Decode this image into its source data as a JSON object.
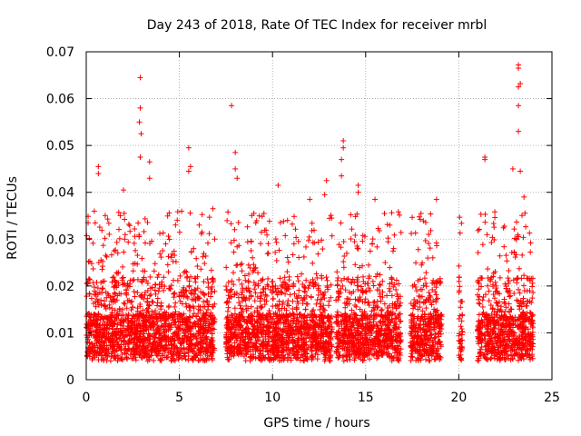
{
  "chart_data": {
    "type": "scatter",
    "title": "Day 243 of 2018, Rate Of TEC Index for receiver mrbl",
    "xlabel": "GPS time / hours",
    "ylabel": "ROTI / TECUs",
    "xlim": [
      0,
      25
    ],
    "ylim": [
      0,
      0.07
    ],
    "xticks": [
      "0",
      "5",
      "10",
      "15",
      "20",
      "25"
    ],
    "yticks": [
      "0",
      "0.01",
      "0.02",
      "0.03",
      "0.04",
      "0.05",
      "0.06",
      "0.07"
    ],
    "grid": true,
    "marker": "plus",
    "marker_color": "#ff0000",
    "series": [
      {
        "name": "",
        "data_ranges_hours": [
          [
            0,
            6.9
          ],
          [
            7.5,
            13.2
          ],
          [
            13.4,
            16.9
          ],
          [
            17.4,
            19.1
          ],
          [
            20.0,
            20.2
          ],
          [
            21.0,
            24.0
          ]
        ],
        "typical_range": [
          0.005,
          0.03
        ],
        "peaks": [
          [
            2.9,
            0.0645
          ],
          [
            2.9,
            0.058
          ],
          [
            2.85,
            0.055
          ],
          [
            2.95,
            0.0525
          ],
          [
            2.9,
            0.0475
          ],
          [
            3.4,
            0.0465
          ],
          [
            3.4,
            0.043
          ],
          [
            0.65,
            0.0455
          ],
          [
            0.65,
            0.044
          ],
          [
            5.5,
            0.0495
          ],
          [
            5.6,
            0.0455
          ],
          [
            5.5,
            0.0445
          ],
          [
            7.8,
            0.0585
          ],
          [
            8.0,
            0.0485
          ],
          [
            8.0,
            0.045
          ],
          [
            8.1,
            0.043
          ],
          [
            13.8,
            0.051
          ],
          [
            13.8,
            0.0495
          ],
          [
            13.7,
            0.047
          ],
          [
            13.7,
            0.0435
          ],
          [
            14.6,
            0.0415
          ],
          [
            14.6,
            0.04
          ],
          [
            12.9,
            0.0425
          ],
          [
            12.8,
            0.0395
          ],
          [
            10.3,
            0.0415
          ],
          [
            2.0,
            0.0405
          ],
          [
            21.4,
            0.047
          ],
          [
            21.4,
            0.0475
          ],
          [
            23.2,
            0.0672
          ],
          [
            23.2,
            0.0665
          ],
          [
            23.3,
            0.0632
          ],
          [
            23.2,
            0.0625
          ],
          [
            23.2,
            0.0585
          ],
          [
            23.2,
            0.053
          ],
          [
            22.9,
            0.045
          ],
          [
            23.3,
            0.0445
          ],
          [
            23.5,
            0.039
          ],
          [
            18.8,
            0.0385
          ],
          [
            15.5,
            0.0385
          ],
          [
            12.0,
            0.0385
          ],
          [
            0.1,
            0.0335
          ],
          [
            1.5,
            0.0275
          ],
          [
            6.8,
            0.0365
          ],
          [
            9.0,
            0.0355
          ],
          [
            16.5,
            0.028
          ]
        ]
      }
    ]
  }
}
